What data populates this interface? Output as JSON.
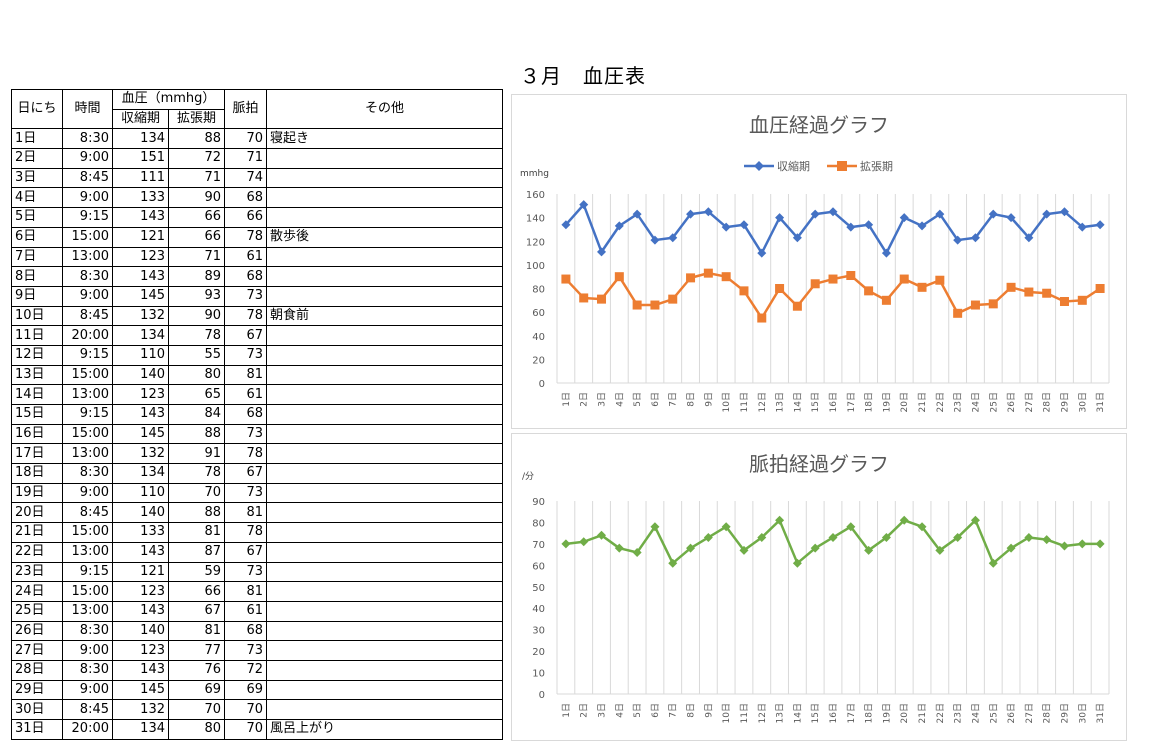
{
  "page": {
    "title": "３月　血圧表"
  },
  "table": {
    "headers": {
      "day": "日にち",
      "time": "時間",
      "bp": "血圧（mmhg）",
      "systolic": "収縮期",
      "diastolic": "拡張期",
      "pulse": "脈拍",
      "other": "その他"
    },
    "rows": [
      {
        "day": "1日",
        "time": "8:30",
        "sys": "134",
        "dia": "88",
        "pulse": "70",
        "other": "寝起き"
      },
      {
        "day": "2日",
        "time": "9:00",
        "sys": "151",
        "dia": "72",
        "pulse": "71",
        "other": ""
      },
      {
        "day": "3日",
        "time": "8:45",
        "sys": "111",
        "dia": "71",
        "pulse": "74",
        "other": ""
      },
      {
        "day": "4日",
        "time": "9:00",
        "sys": "133",
        "dia": "90",
        "pulse": "68",
        "other": ""
      },
      {
        "day": "5日",
        "time": "9:15",
        "sys": "143",
        "dia": "66",
        "pulse": "66",
        "other": ""
      },
      {
        "day": "6日",
        "time": "15:00",
        "sys": "121",
        "dia": "66",
        "pulse": "78",
        "other": "散歩後"
      },
      {
        "day": "7日",
        "time": "13:00",
        "sys": "123",
        "dia": "71",
        "pulse": "61",
        "other": ""
      },
      {
        "day": "8日",
        "time": "8:30",
        "sys": "143",
        "dia": "89",
        "pulse": "68",
        "other": ""
      },
      {
        "day": "9日",
        "time": "9:00",
        "sys": "145",
        "dia": "93",
        "pulse": "73",
        "other": ""
      },
      {
        "day": "10日",
        "time": "8:45",
        "sys": "132",
        "dia": "90",
        "pulse": "78",
        "other": "朝食前"
      },
      {
        "day": "11日",
        "time": "20:00",
        "sys": "134",
        "dia": "78",
        "pulse": "67",
        "other": ""
      },
      {
        "day": "12日",
        "time": "9:15",
        "sys": "110",
        "dia": "55",
        "pulse": "73",
        "other": ""
      },
      {
        "day": "13日",
        "time": "15:00",
        "sys": "140",
        "dia": "80",
        "pulse": "81",
        "other": ""
      },
      {
        "day": "14日",
        "time": "13:00",
        "sys": "123",
        "dia": "65",
        "pulse": "61",
        "other": ""
      },
      {
        "day": "15日",
        "time": "9:15",
        "sys": "143",
        "dia": "84",
        "pulse": "68",
        "other": ""
      },
      {
        "day": "16日",
        "time": "15:00",
        "sys": "145",
        "dia": "88",
        "pulse": "73",
        "other": ""
      },
      {
        "day": "17日",
        "time": "13:00",
        "sys": "132",
        "dia": "91",
        "pulse": "78",
        "other": ""
      },
      {
        "day": "18日",
        "time": "8:30",
        "sys": "134",
        "dia": "78",
        "pulse": "67",
        "other": ""
      },
      {
        "day": "19日",
        "time": "9:00",
        "sys": "110",
        "dia": "70",
        "pulse": "73",
        "other": ""
      },
      {
        "day": "20日",
        "time": "8:45",
        "sys": "140",
        "dia": "88",
        "pulse": "81",
        "other": ""
      },
      {
        "day": "21日",
        "time": "15:00",
        "sys": "133",
        "dia": "81",
        "pulse": "78",
        "other": ""
      },
      {
        "day": "22日",
        "time": "13:00",
        "sys": "143",
        "dia": "87",
        "pulse": "67",
        "other": ""
      },
      {
        "day": "23日",
        "time": "9:15",
        "sys": "121",
        "dia": "59",
        "pulse": "73",
        "other": ""
      },
      {
        "day": "24日",
        "time": "15:00",
        "sys": "123",
        "dia": "66",
        "pulse": "81",
        "other": ""
      },
      {
        "day": "25日",
        "time": "13:00",
        "sys": "143",
        "dia": "67",
        "pulse": "61",
        "other": ""
      },
      {
        "day": "26日",
        "time": "8:30",
        "sys": "140",
        "dia": "81",
        "pulse": "68",
        "other": ""
      },
      {
        "day": "27日",
        "time": "9:00",
        "sys": "123",
        "dia": "77",
        "pulse": "73",
        "other": ""
      },
      {
        "day": "28日",
        "time": "8:30",
        "sys": "143",
        "dia": "76",
        "pulse": "72",
        "other": ""
      },
      {
        "day": "29日",
        "time": "9:00",
        "sys": "145",
        "dia": "69",
        "pulse": "69",
        "other": ""
      },
      {
        "day": "30日",
        "time": "8:45",
        "sys": "132",
        "dia": "70",
        "pulse": "70",
        "other": ""
      },
      {
        "day": "31日",
        "time": "20:00",
        "sys": "134",
        "dia": "80",
        "pulse": "70",
        "other": "風呂上がり"
      }
    ]
  },
  "chart_data": [
    {
      "type": "line",
      "title": "血圧経過グラフ",
      "ylabel": "mmhg",
      "xlabel": "",
      "ylim": [
        0,
        160
      ],
      "yticks": [
        0,
        20,
        40,
        60,
        80,
        100,
        120,
        140,
        160
      ],
      "grid": "vertical",
      "legend": "top",
      "categories": [
        "1日",
        "2日",
        "3日",
        "4日",
        "5日",
        "6日",
        "7日",
        "8日",
        "9日",
        "10日",
        "11日",
        "12日",
        "13日",
        "14日",
        "15日",
        "16日",
        "17日",
        "18日",
        "19日",
        "20日",
        "21日",
        "22日",
        "23日",
        "24日",
        "25日",
        "26日",
        "27日",
        "28日",
        "29日",
        "30日",
        "31日"
      ],
      "series": [
        {
          "name": "収縮期",
          "color": "#4472c4",
          "marker": "diamond",
          "values": [
            134,
            151,
            111,
            133,
            143,
            121,
            123,
            143,
            145,
            132,
            134,
            110,
            140,
            123,
            143,
            145,
            132,
            134,
            110,
            140,
            133,
            143,
            121,
            123,
            143,
            140,
            123,
            143,
            145,
            132,
            134
          ]
        },
        {
          "name": "拡張期",
          "color": "#ed7d31",
          "marker": "square",
          "values": [
            88,
            72,
            71,
            90,
            66,
            66,
            71,
            89,
            93,
            90,
            78,
            55,
            80,
            65,
            84,
            88,
            91,
            78,
            70,
            88,
            81,
            87,
            59,
            66,
            67,
            81,
            77,
            76,
            69,
            70,
            80
          ]
        }
      ]
    },
    {
      "type": "line",
      "title": "脈拍経過グラフ",
      "ylabel": "/分",
      "xlabel": "",
      "ylim": [
        0,
        90
      ],
      "yticks": [
        0,
        10,
        20,
        30,
        40,
        50,
        60,
        70,
        80,
        90
      ],
      "grid": "vertical",
      "categories": [
        "1日",
        "2日",
        "3日",
        "4日",
        "5日",
        "6日",
        "7日",
        "8日",
        "9日",
        "10日",
        "11日",
        "12日",
        "13日",
        "14日",
        "15日",
        "16日",
        "17日",
        "18日",
        "19日",
        "20日",
        "21日",
        "22日",
        "23日",
        "24日",
        "25日",
        "26日",
        "27日",
        "28日",
        "29日",
        "30日",
        "31日"
      ],
      "series": [
        {
          "color": "#70ad47",
          "marker": "diamond",
          "values": [
            70,
            71,
            74,
            68,
            66,
            78,
            61,
            68,
            73,
            78,
            67,
            73,
            81,
            61,
            68,
            73,
            78,
            67,
            73,
            81,
            78,
            67,
            73,
            81,
            61,
            68,
            73,
            72,
            69,
            70,
            70
          ]
        }
      ]
    }
  ]
}
